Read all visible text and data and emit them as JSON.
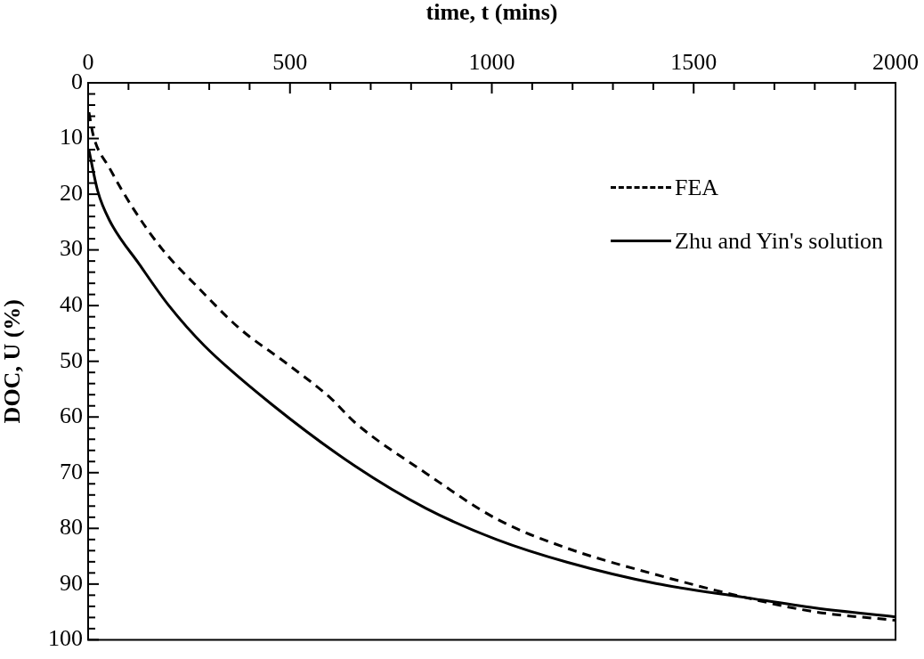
{
  "chart_data": {
    "type": "line",
    "xlabel": "time, t (mins)",
    "ylabel": "DOC, U (%)",
    "xlim": [
      0,
      2000
    ],
    "xticks": [
      0,
      {
        "value": 100,
        "label": null
      },
      {
        "value": 200,
        "label": null
      },
      {
        "value": 300,
        "label": null
      },
      {
        "value": 400,
        "label": null
      },
      500,
      {
        "value": 600,
        "label": null
      },
      {
        "value": 700,
        "label": null
      },
      {
        "value": 800,
        "label": null
      },
      {
        "value": 900,
        "label": null
      },
      1000,
      {
        "value": 1100,
        "label": null
      },
      {
        "value": 1200,
        "label": null
      },
      {
        "value": 1300,
        "label": null
      },
      {
        "value": 1400,
        "label": null
      },
      1500,
      {
        "value": 1600,
        "label": null
      },
      {
        "value": 1700,
        "label": null
      },
      {
        "value": 1800,
        "label": null
      },
      {
        "value": 1900,
        "label": null
      },
      2000
    ],
    "ylim": [
      100,
      0
    ],
    "yticks": [
      0,
      {
        "value": 2,
        "label": null
      },
      {
        "value": 4,
        "label": null
      },
      {
        "value": 6,
        "label": null
      },
      {
        "value": 8,
        "label": null
      },
      10,
      {
        "value": 12,
        "label": null
      },
      {
        "value": 14,
        "label": null
      },
      {
        "value": 16,
        "label": null
      },
      {
        "value": 18,
        "label": null
      },
      20,
      {
        "value": 22,
        "label": null
      },
      {
        "value": 24,
        "label": null
      },
      {
        "value": 26,
        "label": null
      },
      {
        "value": 28,
        "label": null
      },
      30,
      {
        "value": 32,
        "label": null
      },
      {
        "value": 34,
        "label": null
      },
      {
        "value": 36,
        "label": null
      },
      {
        "value": 38,
        "label": null
      },
      40,
      {
        "value": 42,
        "label": null
      },
      {
        "value": 44,
        "label": null
      },
      {
        "value": 46,
        "label": null
      },
      {
        "value": 48,
        "label": null
      },
      50,
      {
        "value": 52,
        "label": null
      },
      {
        "value": 54,
        "label": null
      },
      {
        "value": 56,
        "label": null
      },
      {
        "value": 58,
        "label": null
      },
      60,
      {
        "value": 62,
        "label": null
      },
      {
        "value": 64,
        "label": null
      },
      {
        "value": 66,
        "label": null
      },
      {
        "value": 68,
        "label": null
      },
      70,
      {
        "value": 72,
        "label": null
      },
      {
        "value": 74,
        "label": null
      },
      {
        "value": 76,
        "label": null
      },
      {
        "value": 78,
        "label": null
      },
      80,
      {
        "value": 82,
        "label": null
      },
      {
        "value": 84,
        "label": null
      },
      {
        "value": 86,
        "label": null
      },
      {
        "value": 88,
        "label": null
      },
      90,
      {
        "value": 92,
        "label": null
      },
      {
        "value": 94,
        "label": null
      },
      {
        "value": 96,
        "label": null
      },
      {
        "value": 98,
        "label": null
      },
      100
    ],
    "grid": false,
    "legend": "right",
    "marker": "none",
    "series": [
      {
        "name": "FEA",
        "color": "#000000",
        "line_style": "dashed",
        "x": [
          2,
          13,
          53,
          112,
          185,
          273,
          375,
          492,
          602,
          661,
          837,
          1012,
          1188,
          1407,
          1627,
          1802,
          2000
        ],
        "values": [
          5.3,
          9.5,
          15.3,
          22.6,
          30,
          36.8,
          44.1,
          50.4,
          56.7,
          61,
          70.1,
          78.3,
          83.6,
          88.3,
          92.4,
          95,
          96.5
        ]
      },
      {
        "name": "Zhu and Yin's solution",
        "color": "#000000",
        "line_style": "solid",
        "x": [
          2,
          24,
          53,
          127,
          200,
          288,
          456,
          661,
          837,
          1012,
          1188,
          1407,
          1627,
          1802,
          2000
        ],
        "values": [
          12.1,
          19.5,
          24.7,
          32.6,
          40,
          47.2,
          57.8,
          68.8,
          76.4,
          82,
          86.1,
          89.9,
          92.4,
          94.3,
          95.9
        ]
      }
    ]
  }
}
